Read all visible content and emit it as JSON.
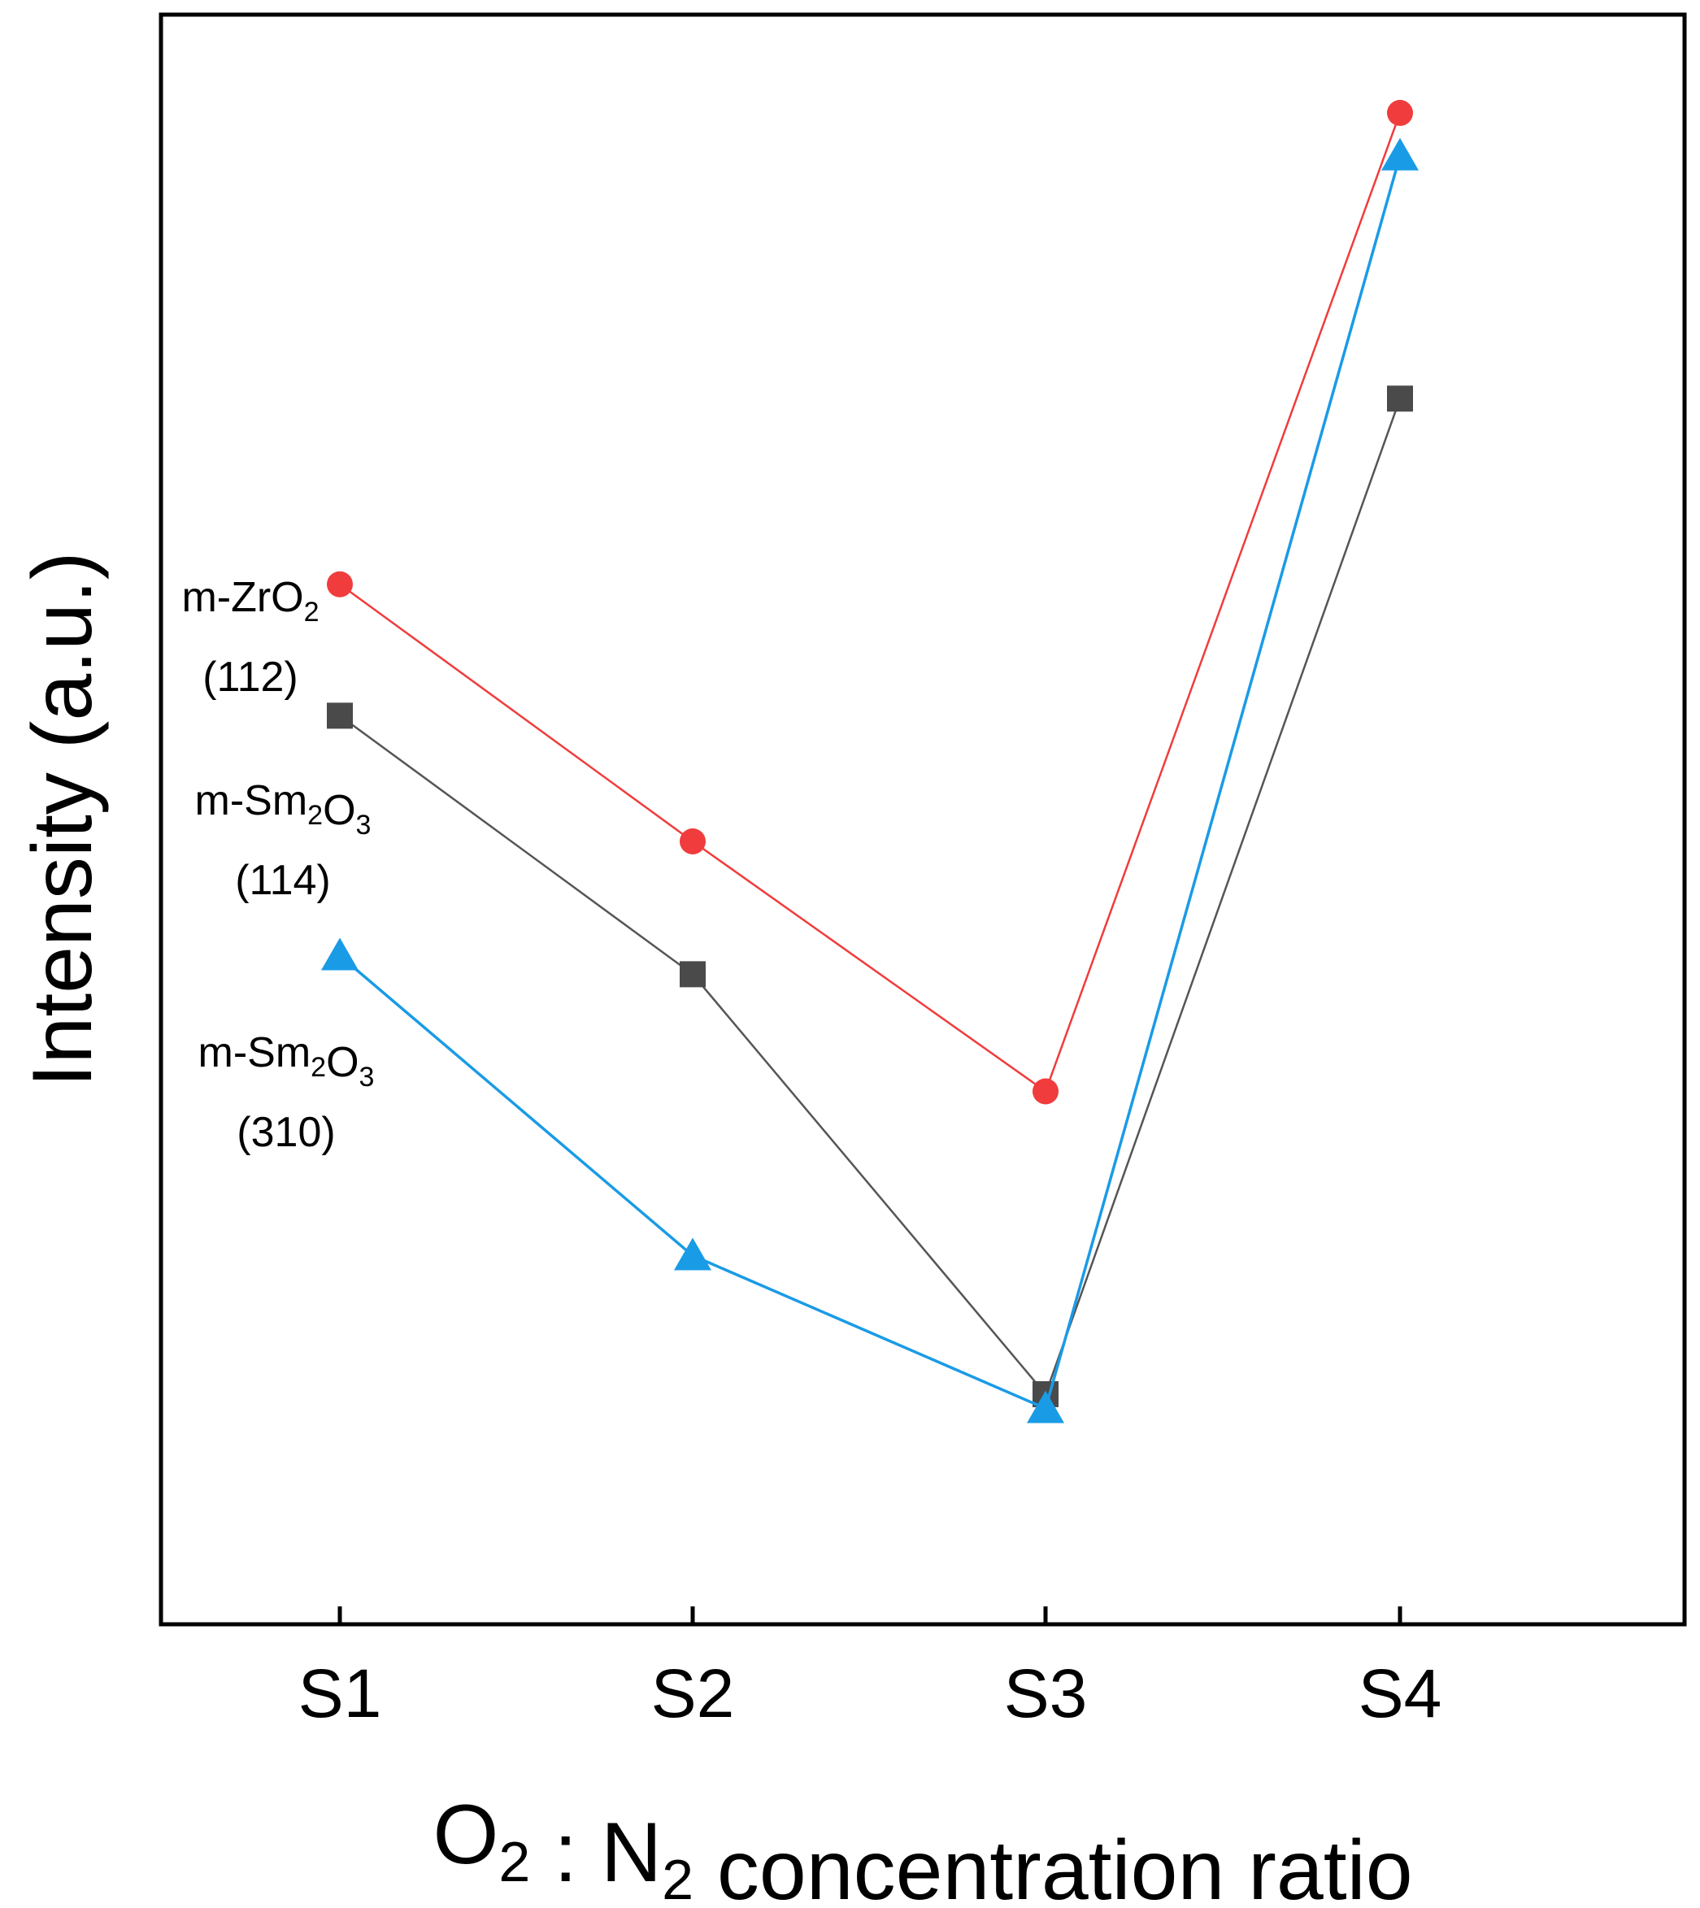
{
  "chart_data": {
    "type": "line",
    "categories": [
      "S1",
      "S2",
      "S3",
      "S4"
    ],
    "xlabel": {
      "parts": [
        {
          "text": "O",
          "sub": "2"
        },
        {
          "text": " : N",
          "sub": "2"
        },
        {
          "text": " concentration ratio",
          "sub": ""
        }
      ]
    },
    "ylabel": "Intensity (a.u.)",
    "ylim": [
      0,
      100
    ],
    "y_ticks_shown": false,
    "grid": false,
    "legend": "none",
    "series": [
      {
        "name": "m-ZrO2 (112)",
        "color": "#f03c3c",
        "marker": "circle",
        "values": [
          64.5,
          46.5,
          29.0,
          97.5
        ],
        "label": {
          "line1": [
            {
              "text": "m-ZrO",
              "sub": "2"
            }
          ],
          "line2": "(112)"
        }
      },
      {
        "name": "m-Sm2O3 (114)",
        "color": "#4a4a4a",
        "line_color": "#555555",
        "marker": "square",
        "values": [
          55.3,
          37.2,
          7.8,
          77.5
        ],
        "label": {
          "line1": [
            {
              "text": "m-Sm",
              "sub": "2"
            },
            {
              "text": "O",
              "sub": "3"
            }
          ],
          "line2": "(114)"
        }
      },
      {
        "name": "m-Sm2O3 (310)",
        "color": "#1a9be6",
        "marker": "triangle",
        "values": [
          38.5,
          17.5,
          6.8,
          94.5
        ],
        "label": {
          "line1": [
            {
              "text": "m-Sm",
              "sub": "2"
            },
            {
              "text": "O",
              "sub": "3"
            }
          ],
          "line2": "(310)"
        }
      }
    ]
  }
}
